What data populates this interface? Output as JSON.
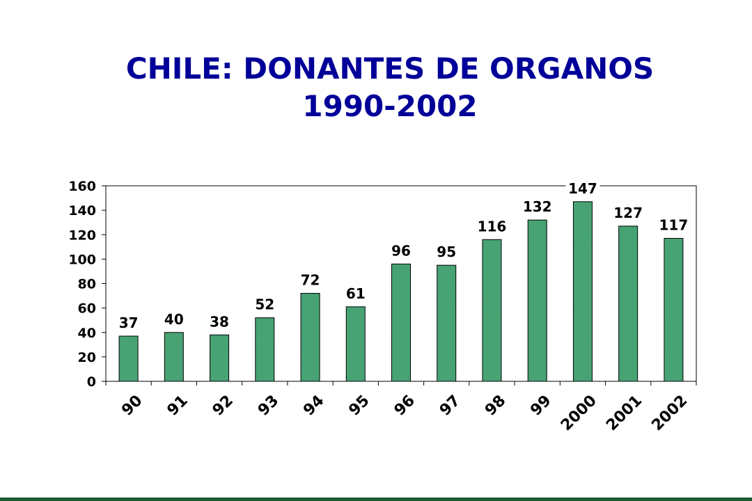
{
  "chart_data": {
    "type": "bar",
    "title_lines": [
      "CHILE: DONANTES DE ORGANOS",
      "1990-2002"
    ],
    "categories": [
      "90",
      "91",
      "92",
      "93",
      "94",
      "95",
      "96",
      "97",
      "98",
      "99",
      "2000",
      "2001",
      "2002"
    ],
    "values": [
      37,
      40,
      38,
      52,
      72,
      61,
      96,
      95,
      116,
      132,
      147,
      127,
      117
    ],
    "ylim": [
      0,
      160
    ],
    "yticks": [
      0,
      20,
      40,
      60,
      80,
      100,
      120,
      140,
      160
    ],
    "xlabel": "",
    "ylabel": "",
    "grid": false,
    "legend": "none",
    "bar_color": "#3a9a6a",
    "bar_pattern_color": "#7cc49c",
    "title_color": "#000099",
    "bottom_rule_color": "#1e5a32"
  }
}
